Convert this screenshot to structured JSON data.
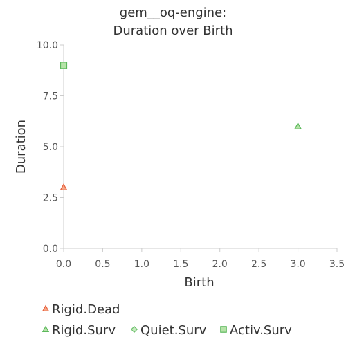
{
  "chart_data": {
    "type": "scatter",
    "title_lines": [
      "gem__oq-engine:",
      "Duration over Birth"
    ],
    "xlabel": "Birth",
    "ylabel": "Duration",
    "xlim": [
      0,
      3.5
    ],
    "ylim": [
      0,
      10
    ],
    "x_ticks": [
      0,
      0.5,
      1,
      1.5,
      2,
      2.5,
      3,
      3.5
    ],
    "x_tick_labels": [
      "0.0",
      "0.5",
      "1.0",
      "1.5",
      "2.0",
      "2.5",
      "3.0",
      "3.5"
    ],
    "y_ticks": [
      0,
      2.5,
      5,
      7.5,
      10
    ],
    "y_tick_labels": [
      "0.0",
      "2.5",
      "5.0",
      "7.5",
      "10.0"
    ],
    "grid": false,
    "legend_position": "bottom-left",
    "series": [
      {
        "name": "Rigid.Dead",
        "marker": "triangle",
        "color": "#e8603c",
        "fill": "#f5a88a",
        "points": [
          {
            "x": 0,
            "y": 3
          }
        ]
      },
      {
        "name": "Rigid.Surv",
        "marker": "triangle",
        "color": "#5cb85c",
        "fill": "#b6e3a8",
        "points": [
          {
            "x": 3,
            "y": 6
          }
        ]
      },
      {
        "name": "Quiet.Surv",
        "marker": "diamond",
        "color": "#6cc06c",
        "fill": "#c8ebc0",
        "points": []
      },
      {
        "name": "Activ.Surv",
        "marker": "square",
        "color": "#5cb85c",
        "fill": "#b6e3a8",
        "points": [
          {
            "x": 0,
            "y": 9
          }
        ]
      }
    ]
  }
}
